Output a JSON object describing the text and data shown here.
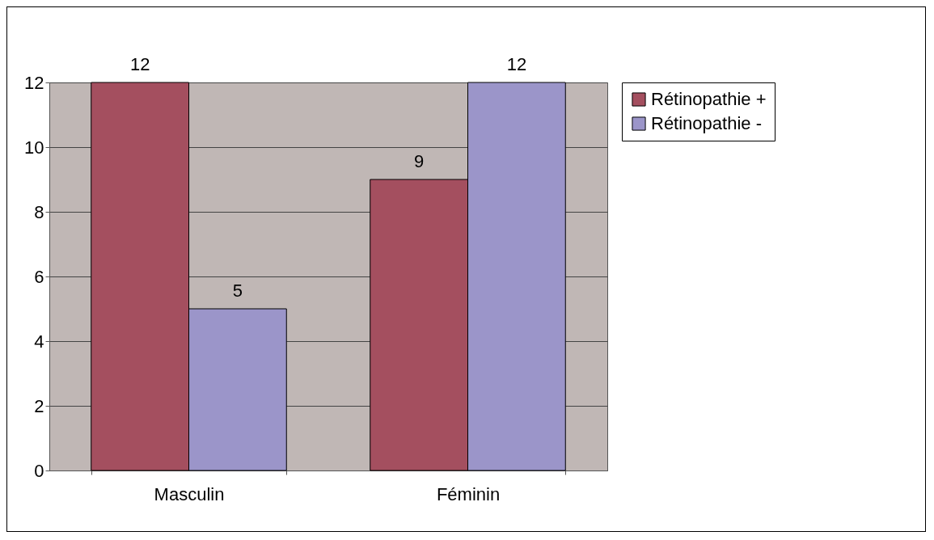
{
  "chart_data": {
    "type": "bar",
    "categories": [
      "Masculin",
      "Féminin"
    ],
    "series": [
      {
        "name": "Rétinopathie +",
        "color": "#a44f5f",
        "values": [
          12,
          9
        ]
      },
      {
        "name": "Rétinopathie -",
        "color": "#9b95c9",
        "values": [
          5,
          12
        ]
      }
    ],
    "ylim": [
      0,
      12
    ],
    "yticks": [
      0,
      2,
      4,
      6,
      8,
      10,
      12
    ],
    "grid": "y",
    "legend": "right",
    "data_labels": true
  }
}
